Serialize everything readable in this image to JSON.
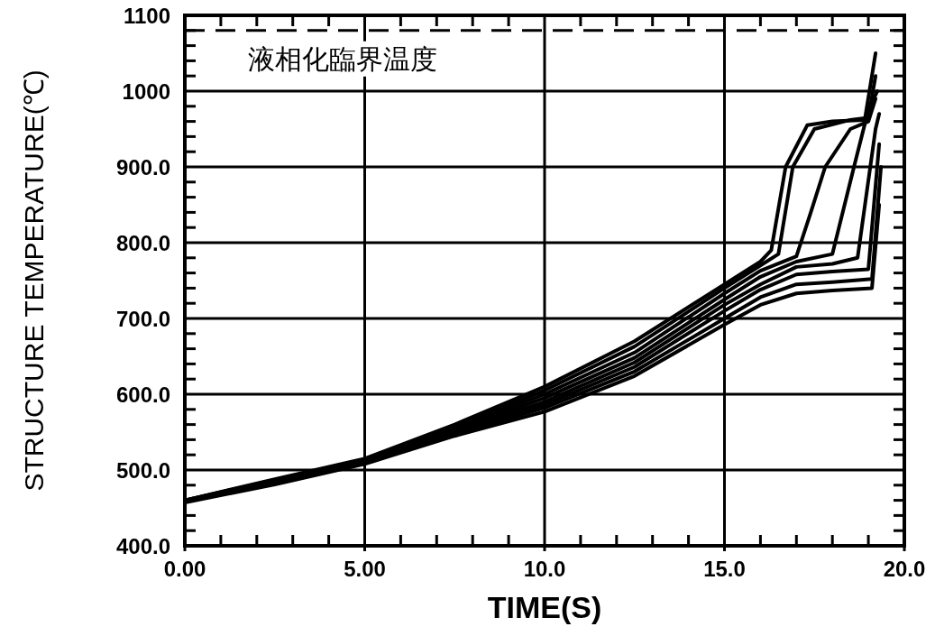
{
  "chart_data": {
    "type": "line",
    "xlabel": "TIME(S)",
    "ylabel": "STRUCTURE TEMPERATURE(℃)",
    "xlim": [
      0,
      20
    ],
    "ylim": [
      400,
      1100
    ],
    "xticks": [
      {
        "value": 0,
        "label": "0.00"
      },
      {
        "value": 5,
        "label": "5.00"
      },
      {
        "value": 10,
        "label": "10.0"
      },
      {
        "value": 15,
        "label": "15.0"
      },
      {
        "value": 20,
        "label": "20.0"
      }
    ],
    "yticks": [
      {
        "value": 400,
        "label": "400.0"
      },
      {
        "value": 500,
        "label": "500.0"
      },
      {
        "value": 600,
        "label": "600.0"
      },
      {
        "value": 700,
        "label": "700.0"
      },
      {
        "value": 800,
        "label": "800.0"
      },
      {
        "value": 900,
        "label": "900.0"
      },
      1000,
      1100
    ],
    "grid": true,
    "marker": "none",
    "line_style": "solid",
    "ref_lines": [
      {
        "axis": "y",
        "value": 1080,
        "label": "液相化臨界温度",
        "line_style": "dashed",
        "color": "#000000"
      }
    ],
    "series": [
      {
        "color": "#000000",
        "x": [
          0,
          2.5,
          5,
          7.5,
          10,
          12.5,
          15,
          16,
          16.3,
          16.7,
          17.3,
          18,
          18.9,
          19.2
        ],
        "values": [
          460,
          488,
          515,
          560,
          610,
          670,
          745,
          775,
          790,
          900,
          955,
          960,
          962,
          1050
        ]
      },
      {
        "color": "#000000",
        "x": [
          0,
          2.5,
          5,
          7.5,
          10,
          12.5,
          15,
          16,
          16.5,
          16.9,
          17.5,
          18.5,
          19.0,
          19.2
        ],
        "values": [
          460,
          487,
          514,
          557,
          605,
          663,
          740,
          770,
          785,
          900,
          950,
          962,
          965,
          1020
        ]
      },
      {
        "color": "#000000",
        "x": [
          0,
          2.5,
          5,
          7.5,
          10,
          12.5,
          15,
          16,
          17.0,
          17.4,
          17.8,
          18.5,
          19.0,
          19.2
        ],
        "values": [
          460,
          486,
          513,
          555,
          600,
          655,
          733,
          763,
          782,
          840,
          900,
          950,
          960,
          990
        ]
      },
      {
        "color": "#000000",
        "x": [
          0,
          2.5,
          5,
          7.5,
          10,
          12.5,
          15,
          16,
          17,
          18.0,
          18.6,
          19.0,
          19.25
        ],
        "values": [
          459,
          485,
          512,
          553,
          595,
          648,
          725,
          755,
          775,
          785,
          900,
          975,
          1000
        ]
      },
      {
        "color": "#000000",
        "x": [
          0,
          2.5,
          5,
          7.5,
          10,
          12.5,
          15,
          16,
          17,
          18,
          18.7,
          19.2,
          19.3
        ],
        "values": [
          459,
          484,
          511,
          551,
          590,
          642,
          718,
          745,
          768,
          772,
          780,
          950,
          970
        ]
      },
      {
        "color": "#000000",
        "x": [
          0,
          2.5,
          5,
          7.5,
          10,
          12.5,
          15,
          16,
          17,
          18,
          19.0,
          19.3
        ],
        "values": [
          458,
          483,
          510,
          549,
          586,
          636,
          710,
          738,
          758,
          762,
          765,
          930
        ]
      },
      {
        "color": "#000000",
        "x": [
          0,
          2.5,
          5,
          7.5,
          10,
          12.5,
          15,
          16,
          17,
          18,
          19.1,
          19.35
        ],
        "values": [
          458,
          482,
          509,
          547,
          582,
          630,
          700,
          728,
          745,
          748,
          752,
          900
        ]
      },
      {
        "color": "#000000",
        "x": [
          0,
          2.5,
          5,
          7.5,
          10,
          12.5,
          15,
          16,
          17,
          18,
          19.1,
          19.3
        ],
        "values": [
          457,
          481,
          508,
          545,
          577,
          624,
          692,
          718,
          733,
          737,
          740,
          850
        ]
      }
    ]
  }
}
